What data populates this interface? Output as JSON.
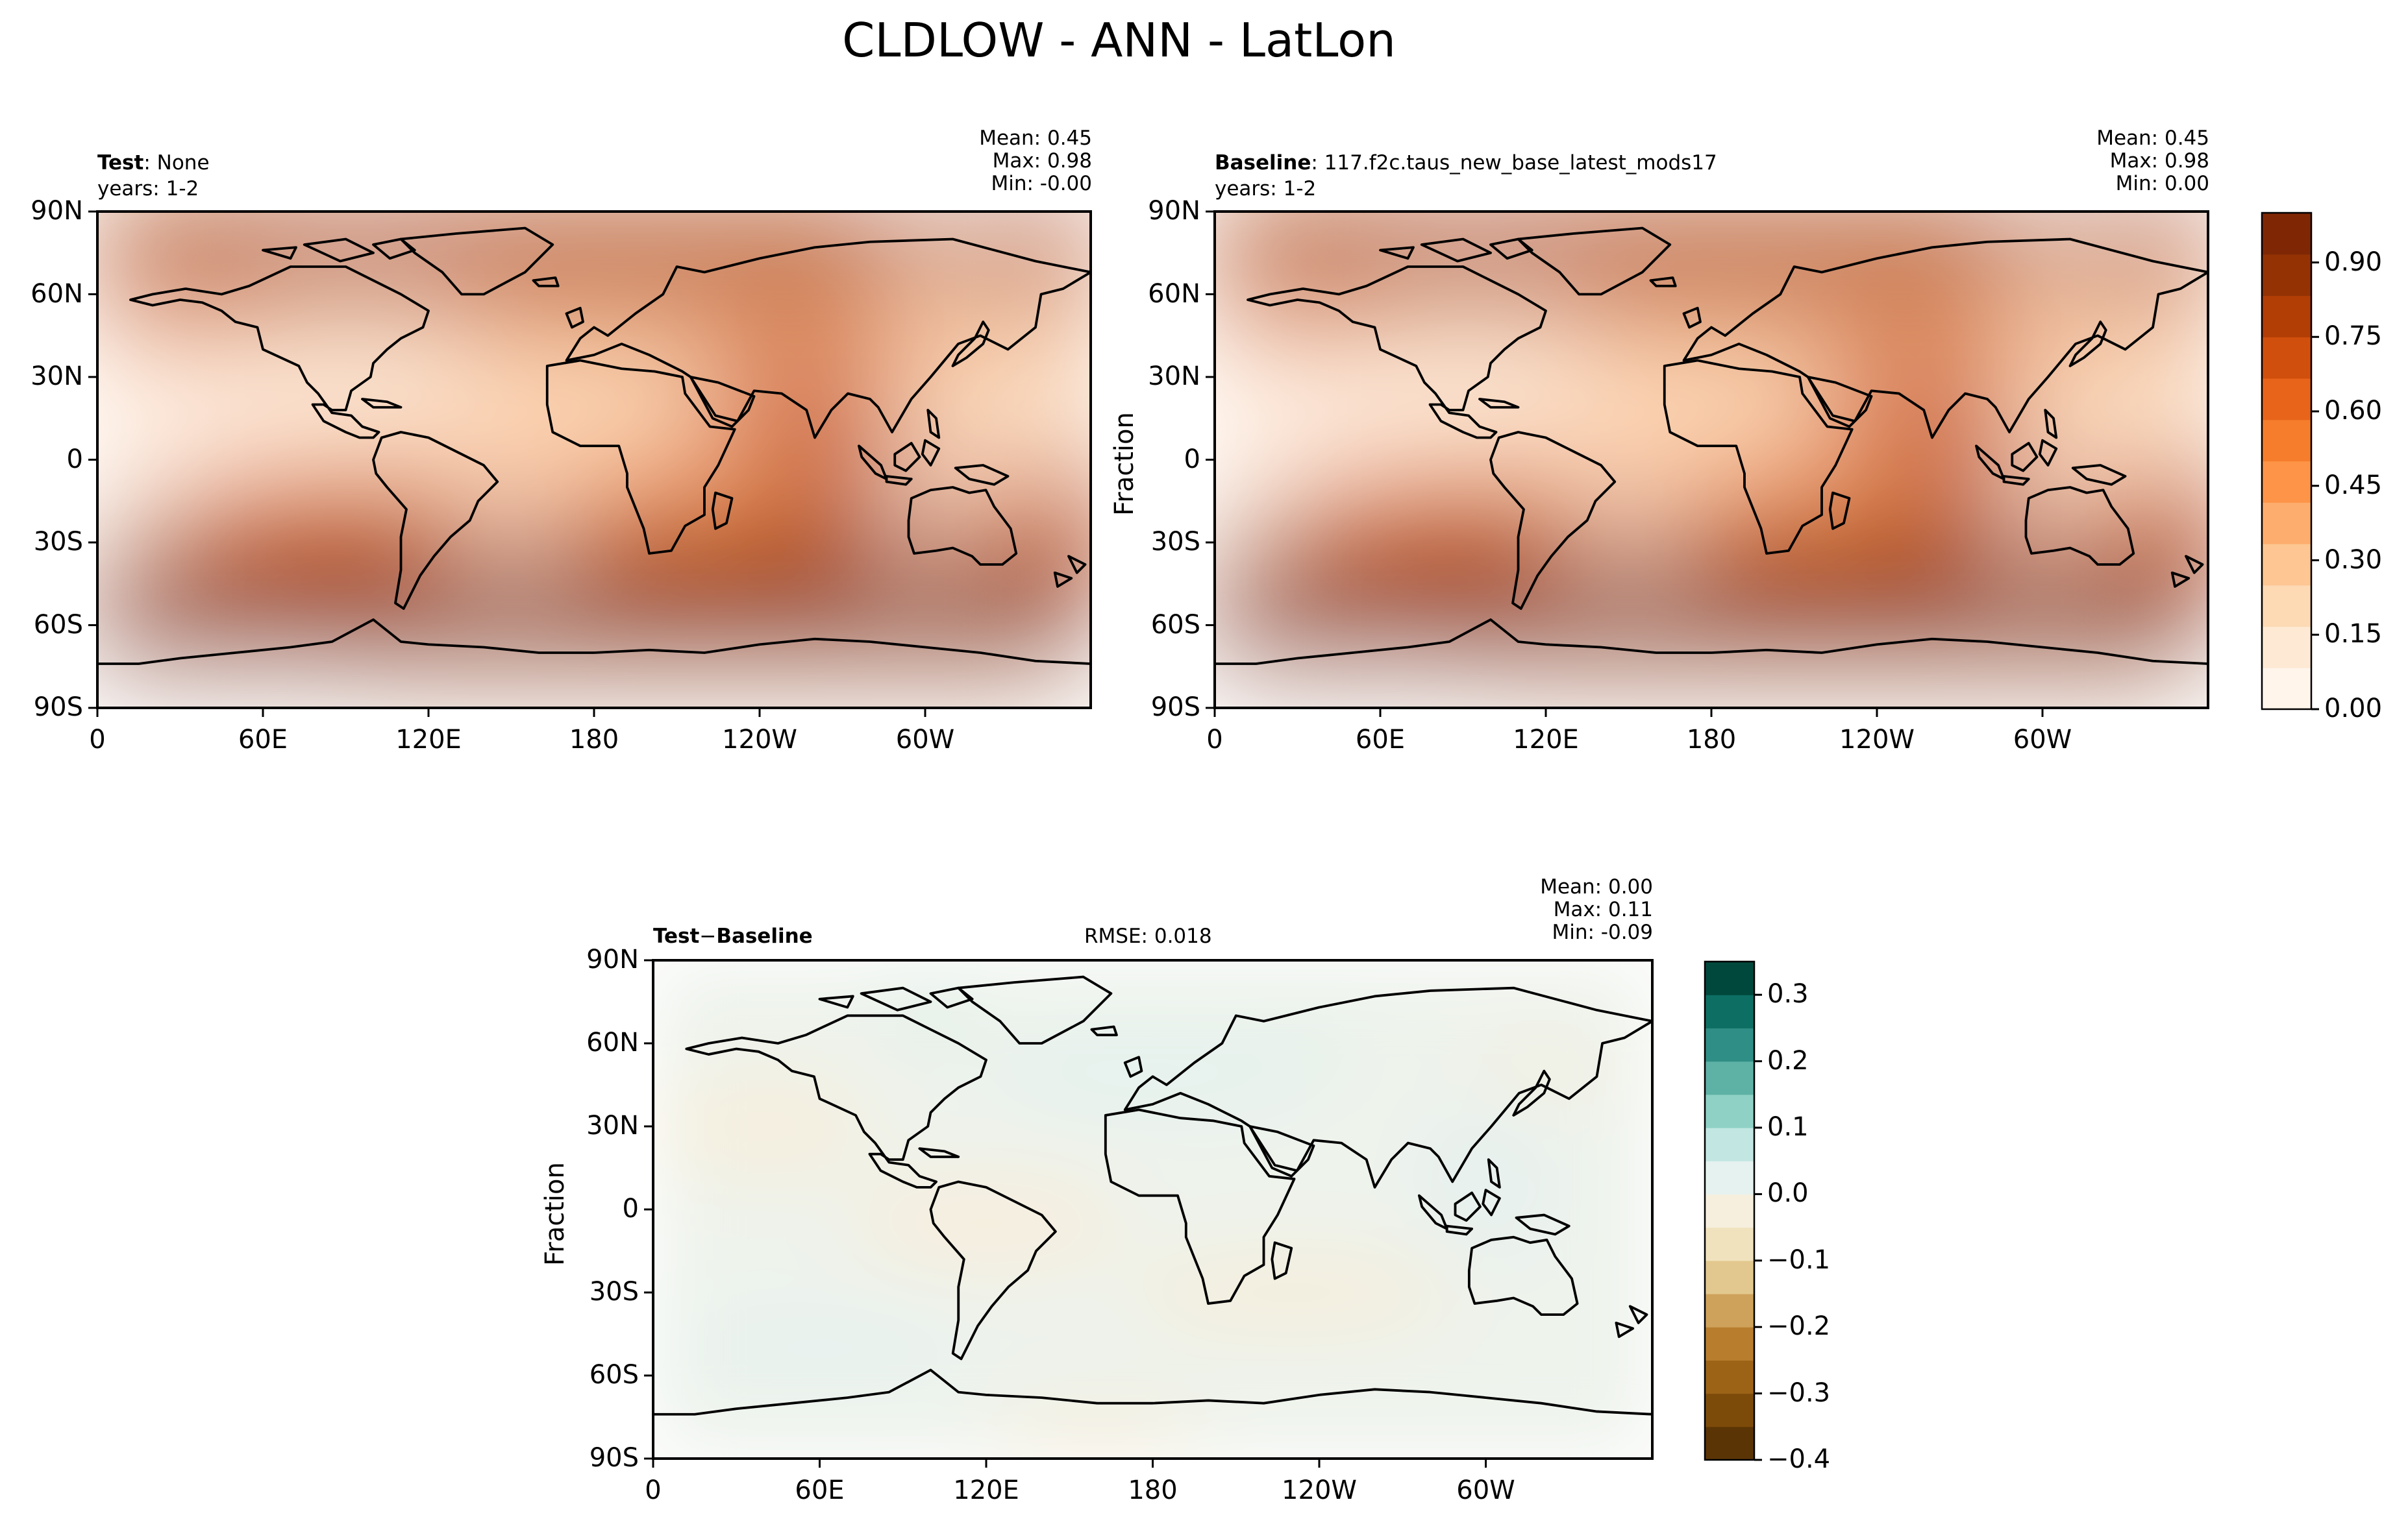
{
  "figure": {
    "title": "CLDLOW - ANN - LatLon"
  },
  "panels": [
    {
      "id": "test",
      "label_bold": "Test",
      "label_sep": ":",
      "label_rest": "None",
      "years": "years: 1-2",
      "stats": {
        "mean": "Mean:  0.45",
        "max": "Max:  0.98",
        "min": "Min: -0.00"
      },
      "ylabel": ""
    },
    {
      "id": "baseline",
      "label_bold": "Baseline",
      "label_sep": ":",
      "label_rest": "117.f2c.taus_new_base_latest_mods17",
      "years": "years: 1-2",
      "stats": {
        "mean": "Mean:  0.45",
        "max": "Max:  0.98",
        "min": "Min:  0.00"
      },
      "ylabel": "Fraction"
    },
    {
      "id": "diff",
      "label_bold_a": "Test",
      "label_sep": "−",
      "label_bold_b": "Baseline",
      "rmse": "RMSE: 0.018",
      "stats": {
        "mean": "Mean:  0.00",
        "max": "Max:  0.11",
        "min": "Min: -0.09"
      },
      "ylabel": "Fraction"
    }
  ],
  "axes": {
    "lat_ticks": [
      "90N",
      "60N",
      "30N",
      "0",
      "30S",
      "60S",
      "90S"
    ],
    "lon_ticks": [
      "0",
      "60E",
      "120E",
      "180",
      "120W",
      "60W"
    ]
  },
  "colorbars": {
    "main": {
      "ticks": [
        "0.90",
        "0.75",
        "0.60",
        "0.45",
        "0.30",
        "0.15",
        "0.00"
      ],
      "range": [
        0.0,
        1.0
      ],
      "colors": [
        "#fff5eb",
        "#fee9d4",
        "#fdd9b4",
        "#fdc692",
        "#fdad6d",
        "#fd9447",
        "#f57d2b",
        "#e8641a",
        "#d14f0c",
        "#b23d05",
        "#943204",
        "#7f2704"
      ]
    },
    "diff": {
      "ticks": [
        "0.3",
        "0.2",
        "0.1",
        "0.0",
        "−0.1",
        "−0.2",
        "−0.3",
        "−0.4"
      ],
      "range": [
        -0.4,
        0.35
      ],
      "colors": [
        "#5a3405",
        "#7d4b09",
        "#9c6317",
        "#b87e2e",
        "#cea25a",
        "#e2c88e",
        "#f0e2bd",
        "#f6efde",
        "#e6f2ef",
        "#c2e7e2",
        "#8fd1c5",
        "#5eb1a5",
        "#2f8e86",
        "#0d6f63",
        "#01483c"
      ]
    }
  },
  "chart_data": {
    "type": "heatmap",
    "title": "CLDLOW - ANN - LatLon",
    "projection": "PlateCarree, central_longitude=180",
    "xlabel": "",
    "ylabel": "Fraction",
    "xlim": [
      0,
      360
    ],
    "ylim": [
      -90,
      90
    ],
    "grid": false,
    "series": [
      {
        "name": "Test",
        "mean": 0.45,
        "max": 0.98,
        "min": -0.0
      },
      {
        "name": "Baseline",
        "mean": 0.45,
        "max": 0.98,
        "min": 0.0
      },
      {
        "name": "Test − Baseline",
        "mean": 0.0,
        "max": 0.11,
        "min": -0.09,
        "rmse": 0.018
      }
    ]
  }
}
